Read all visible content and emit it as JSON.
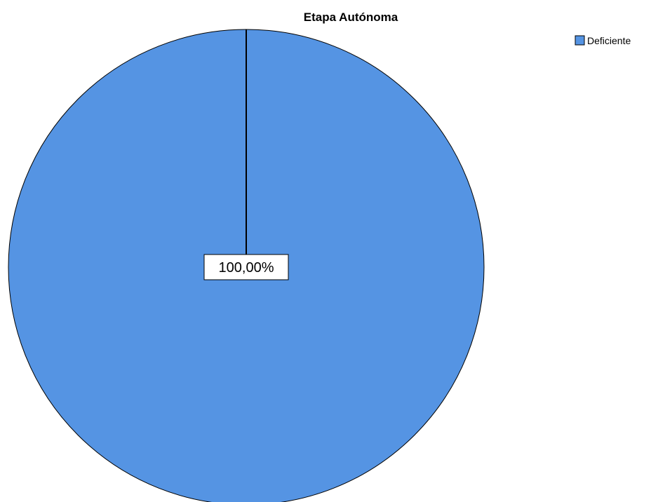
{
  "chart_data": {
    "type": "pie",
    "title": "Etapa Autónoma",
    "categories": [
      "Deficiente"
    ],
    "values": [
      100.0
    ],
    "data_labels": [
      "100,00%"
    ],
    "colors": [
      "#5594e3"
    ],
    "legend_position": "top-right"
  }
}
